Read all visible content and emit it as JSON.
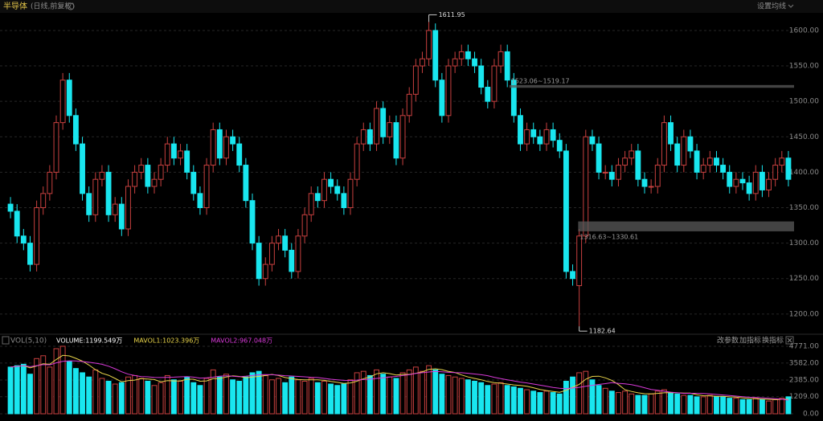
{
  "header": {
    "title": "半导体",
    "subtitle": "(日线,前复权)",
    "menu": "设置均线"
  },
  "chart_data": [
    {
      "type": "candlestick",
      "up_color": "#c8403f",
      "down_color": "#19e6ef",
      "ylim": [
        1176,
        1622.6
      ],
      "yticks": [
        {
          "value": 1200,
          "label": "1200.00"
        },
        {
          "value": 1250,
          "label": "1250.00"
        },
        {
          "value": 1300,
          "label": "1300.00"
        },
        {
          "value": 1350,
          "label": "1350.00"
        },
        {
          "value": 1400,
          "label": "1400.00"
        },
        {
          "value": 1450,
          "label": "1450.00"
        },
        {
          "value": 1500,
          "label": "1500.00"
        },
        {
          "value": 1550,
          "label": "1550.00"
        },
        {
          "value": 1600,
          "label": "1600.00"
        }
      ],
      "grid": true,
      "open": [
        1355,
        1345,
        1310,
        1300,
        1270,
        1350,
        1370,
        1400,
        1470,
        1530,
        1480,
        1440,
        1370,
        1340,
        1390,
        1400,
        1340,
        1355,
        1320,
        1380,
        1400,
        1410,
        1380,
        1390,
        1410,
        1440,
        1420,
        1430,
        1400,
        1370,
        1350,
        1410,
        1460,
        1420,
        1450,
        1440,
        1410,
        1360,
        1300,
        1250,
        1270,
        1300,
        1310,
        1290,
        1260,
        1310,
        1340,
        1370,
        1360,
        1390,
        1380,
        1370,
        1350,
        1390,
        1440,
        1460,
        1440,
        1490,
        1450,
        1470,
        1420,
        1480,
        1510,
        1550,
        1560,
        1600,
        1530,
        1480,
        1550,
        1560,
        1570,
        1560,
        1550,
        1520,
        1500,
        1550,
        1570,
        1530,
        1480,
        1440,
        1460,
        1450,
        1440,
        1460,
        1445,
        1430,
        1260,
        1240,
        1310,
        1450,
        1440,
        1400,
        1400,
        1390,
        1410,
        1420,
        1430,
        1390,
        1380,
        1380,
        1410,
        1470,
        1440,
        1410,
        1450,
        1430,
        1400,
        1410,
        1420,
        1410,
        1400,
        1380,
        1390,
        1385,
        1370,
        1400,
        1375,
        1390,
        1410,
        1420
      ],
      "high": [
        1365,
        1355,
        1320,
        1310,
        1360,
        1380,
        1410,
        1480,
        1540,
        1540,
        1490,
        1450,
        1380,
        1400,
        1410,
        1410,
        1365,
        1365,
        1390,
        1410,
        1420,
        1420,
        1400,
        1420,
        1450,
        1450,
        1440,
        1440,
        1410,
        1380,
        1420,
        1470,
        1470,
        1460,
        1460,
        1450,
        1420,
        1370,
        1310,
        1280,
        1310,
        1320,
        1320,
        1300,
        1320,
        1350,
        1380,
        1380,
        1400,
        1400,
        1390,
        1380,
        1400,
        1450,
        1470,
        1470,
        1500,
        1500,
        1480,
        1480,
        1490,
        1520,
        1560,
        1570,
        1611.95,
        1610,
        1540,
        1560,
        1570,
        1580,
        1580,
        1570,
        1560,
        1530,
        1560,
        1580,
        1580,
        1540,
        1490,
        1470,
        1470,
        1460,
        1470,
        1470,
        1455,
        1440,
        1270,
        1320,
        1460,
        1460,
        1450,
        1410,
        1410,
        1420,
        1430,
        1440,
        1440,
        1400,
        1390,
        1420,
        1480,
        1480,
        1450,
        1460,
        1460,
        1440,
        1420,
        1430,
        1430,
        1420,
        1410,
        1400,
        1400,
        1395,
        1410,
        1410,
        1400,
        1420,
        1430,
        1430
      ],
      "low": [
        1335,
        1300,
        1290,
        1260,
        1260,
        1340,
        1360,
        1390,
        1460,
        1470,
        1430,
        1360,
        1330,
        1330,
        1380,
        1330,
        1330,
        1310,
        1310,
        1370,
        1390,
        1370,
        1370,
        1380,
        1400,
        1410,
        1410,
        1390,
        1360,
        1340,
        1340,
        1400,
        1410,
        1410,
        1430,
        1400,
        1350,
        1290,
        1240,
        1240,
        1260,
        1290,
        1280,
        1250,
        1250,
        1300,
        1330,
        1350,
        1350,
        1370,
        1360,
        1340,
        1340,
        1380,
        1430,
        1430,
        1430,
        1440,
        1440,
        1410,
        1410,
        1470,
        1500,
        1540,
        1550,
        1520,
        1470,
        1470,
        1540,
        1550,
        1550,
        1540,
        1510,
        1490,
        1490,
        1540,
        1520,
        1470,
        1430,
        1430,
        1440,
        1430,
        1430,
        1435,
        1420,
        1250,
        1240,
        1182.64,
        1300,
        1430,
        1390,
        1390,
        1380,
        1380,
        1400,
        1410,
        1380,
        1370,
        1370,
        1370,
        1400,
        1430,
        1400,
        1400,
        1420,
        1390,
        1390,
        1400,
        1400,
        1390,
        1370,
        1370,
        1375,
        1360,
        1360,
        1365,
        1365,
        1380,
        1400,
        1380
      ],
      "close": [
        1345,
        1310,
        1300,
        1270,
        1350,
        1370,
        1400,
        1470,
        1530,
        1480,
        1440,
        1370,
        1340,
        1390,
        1400,
        1340,
        1355,
        1320,
        1380,
        1400,
        1410,
        1380,
        1390,
        1410,
        1440,
        1420,
        1430,
        1400,
        1370,
        1350,
        1410,
        1460,
        1420,
        1450,
        1440,
        1410,
        1360,
        1300,
        1250,
        1270,
        1300,
        1310,
        1290,
        1260,
        1310,
        1340,
        1370,
        1360,
        1390,
        1380,
        1370,
        1350,
        1390,
        1440,
        1460,
        1440,
        1490,
        1450,
        1470,
        1420,
        1480,
        1510,
        1550,
        1560,
        1600,
        1530,
        1480,
        1550,
        1560,
        1570,
        1560,
        1550,
        1520,
        1500,
        1550,
        1570,
        1530,
        1480,
        1440,
        1460,
        1450,
        1440,
        1460,
        1445,
        1430,
        1260,
        1250,
        1310,
        1450,
        1440,
        1400,
        1400,
        1390,
        1410,
        1420,
        1430,
        1390,
        1380,
        1380,
        1410,
        1470,
        1440,
        1410,
        1450,
        1430,
        1400,
        1410,
        1420,
        1410,
        1400,
        1380,
        1390,
        1385,
        1370,
        1400,
        1375,
        1390,
        1410,
        1420,
        1390
      ],
      "annotations": [
        {
          "label": "1611.95",
          "value": 1611.95
        },
        {
          "label": "1182.64",
          "value": 1182.64
        }
      ],
      "zones": [
        {
          "label": "1523.06~1519.17",
          "low": 1519.17,
          "high": 1523.06
        },
        {
          "label": "1316.63~1330.61",
          "low": 1316.63,
          "high": 1330.61
        }
      ]
    },
    {
      "type": "volume",
      "title": "VOL(5,10)",
      "ylim": [
        0,
        4940
      ],
      "yticks": [
        {
          "value": 0,
          "label": "0.00"
        },
        {
          "value": 1209,
          "label": "1209.00"
        },
        {
          "value": 2385,
          "label": "2385.00"
        },
        {
          "value": 3582,
          "label": "3582.00"
        },
        {
          "value": 4771,
          "label": "4771.00"
        }
      ],
      "grid": true,
      "buttons": [
        "改参数",
        "加指标",
        "换指标"
      ],
      "series": [
        {
          "name": "VOLUME:1199.549万",
          "color": "#ffffff",
          "values": [
            3300,
            3400,
            3500,
            2800,
            3900,
            4100,
            3300,
            4600,
            4771,
            3700,
            3200,
            2900,
            2600,
            3100,
            2500,
            2300,
            2100,
            2200,
            2600,
            2700,
            2500,
            2300,
            2000,
            2200,
            2700,
            2400,
            2300,
            2600,
            2200,
            2000,
            2500,
            3100,
            2600,
            2800,
            2400,
            2300,
            2600,
            2900,
            3000,
            2700,
            2400,
            2500,
            2200,
            2600,
            2400,
            2300,
            2500,
            2200,
            2300,
            2100,
            2000,
            2100,
            2400,
            2900,
            3000,
            2700,
            3100,
            2800,
            2600,
            2500,
            2900,
            3100,
            3300,
            3000,
            3400,
            3100,
            2800,
            2700,
            2600,
            2500,
            2400,
            2300,
            2200,
            2000,
            2100,
            2200,
            2000,
            1900,
            1800,
            1700,
            1600,
            1500,
            1600,
            1500,
            1400,
            2300,
            2600,
            2900,
            3000,
            2400,
            2000,
            1800,
            1600,
            1500,
            1600,
            1400,
            1300,
            1300,
            1400,
            1600,
            1700,
            1500,
            1400,
            1300,
            1300,
            1200,
            1200,
            1300,
            1200,
            1200,
            1100,
            1100,
            1000,
            1000,
            1100,
            1000,
            900,
            1000,
            1100,
            1199.549
          ]
        },
        {
          "name": "MAVOL1:1023.396万",
          "color": "#e8d44a",
          "values": [
            3300,
            3350,
            3400,
            3250,
            3380,
            3540,
            3500,
            3840,
            4130,
            4090,
            3920,
            3720,
            3440,
            3120,
            2860,
            2720,
            2500,
            2260,
            2340,
            2380,
            2480,
            2460,
            2420,
            2260,
            2340,
            2320,
            2320,
            2440,
            2440,
            2300,
            2320,
            2480,
            2480,
            2600,
            2680,
            2640,
            2540,
            2600,
            2640,
            2700,
            2780,
            2700,
            2560,
            2480,
            2420,
            2400,
            2400,
            2400,
            2360,
            2280,
            2220,
            2140,
            2180,
            2300,
            2480,
            2600,
            2820,
            2900,
            2840,
            2740,
            2780,
            2780,
            2860,
            2960,
            3140,
            3180,
            3120,
            3000,
            2920,
            2740,
            2600,
            2500,
            2400,
            2280,
            2200,
            2160,
            2100,
            2040,
            2000,
            1940,
            1840,
            1720,
            1640,
            1580,
            1520,
            1660,
            1880,
            2080,
            2440,
            2640,
            2660,
            2540,
            2360,
            2060,
            1700,
            1580,
            1480,
            1420,
            1400,
            1440,
            1480,
            1500,
            1480,
            1460,
            1460,
            1340,
            1280,
            1260,
            1240,
            1240,
            1200,
            1180,
            1120,
            1080,
            1060,
            1040,
            1020,
            1000,
            1020,
            1023.396
          ]
        },
        {
          "name": "MAVOL2:967.048万",
          "color": "#d83ad8",
          "values": [
            3300,
            3350,
            3400,
            3330,
            3400,
            3480,
            3460,
            3600,
            3700,
            3740,
            3730,
            3690,
            3640,
            3580,
            3500,
            3360,
            3180,
            2970,
            2800,
            2700,
            2630,
            2610,
            2570,
            2560,
            2580,
            2590,
            2610,
            2630,
            2590,
            2520,
            2540,
            2590,
            2650,
            2680,
            2650,
            2620,
            2650,
            2700,
            2760,
            2770,
            2760,
            2730,
            2690,
            2670,
            2640,
            2610,
            2580,
            2560,
            2500,
            2440,
            2400,
            2360,
            2350,
            2380,
            2420,
            2440,
            2500,
            2540,
            2600,
            2640,
            2700,
            2760,
            2850,
            2900,
            2950,
            2990,
            2970,
            2930,
            2910,
            2900,
            2860,
            2810,
            2760,
            2690,
            2580,
            2480,
            2400,
            2320,
            2240,
            2180,
            2100,
            2020,
            1940,
            1860,
            1800,
            1780,
            1820,
            1870,
            1940,
            2010,
            2070,
            2130,
            2200,
            2150,
            2120,
            2060,
            1960,
            1840,
            1720,
            1660,
            1590,
            1530,
            1480,
            1440,
            1450,
            1450,
            1430,
            1400,
            1360,
            1330,
            1290,
            1250,
            1210,
            1170,
            1150,
            1120,
            1090,
            1060,
            1030,
            967.048
          ]
        }
      ]
    }
  ]
}
